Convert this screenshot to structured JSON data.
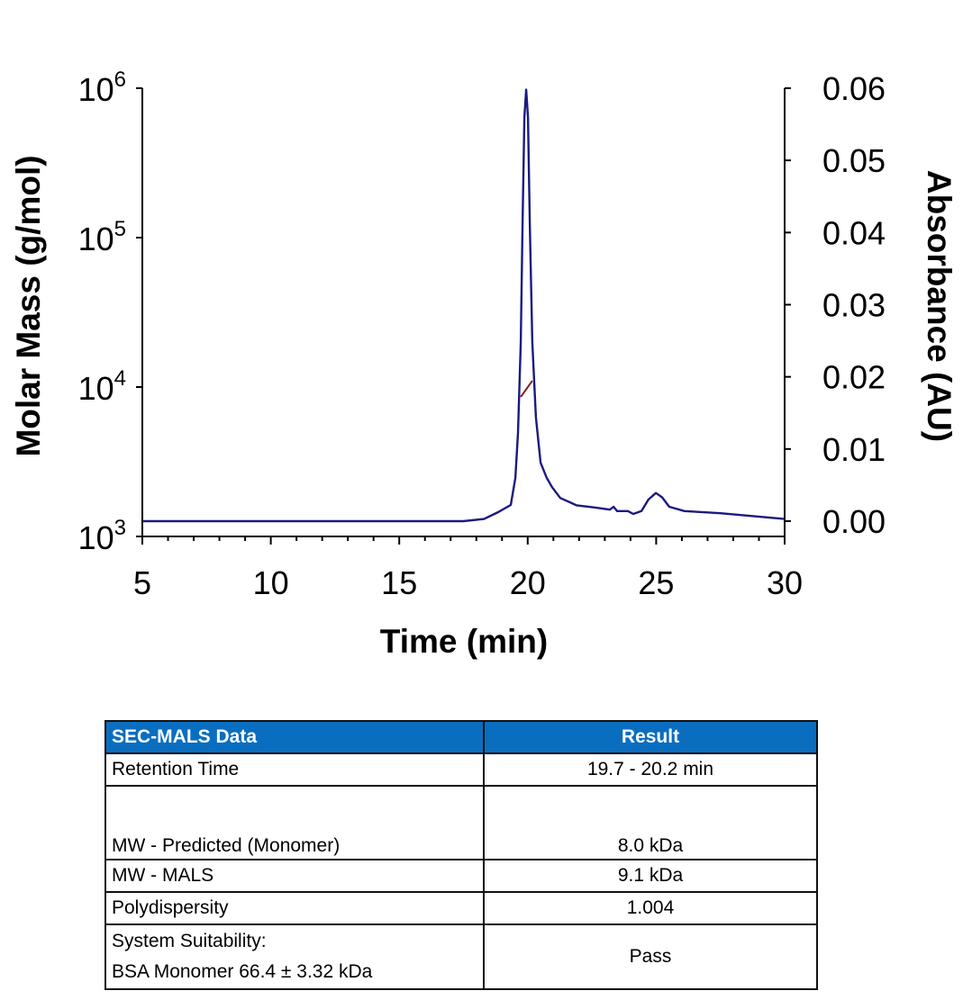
{
  "chart_data": {
    "type": "line",
    "xlabel": "Time (min)",
    "ylabel_left": "Molar Mass (g/mol)",
    "ylabel_right": "Absorbance (AU)",
    "xlim": [
      5,
      30
    ],
    "xticks": [
      5,
      10,
      15,
      20,
      25,
      30
    ],
    "ylim_left": [
      1000,
      1000000
    ],
    "yscale_left": "log",
    "yticks_left": [
      {
        "base": "10",
        "exp": "3"
      },
      {
        "base": "10",
        "exp": "4"
      },
      {
        "base": "10",
        "exp": "5"
      },
      {
        "base": "10",
        "exp": "6"
      }
    ],
    "ylim_right": [
      0,
      0.06
    ],
    "yticks_right": [
      "0.00",
      "0.01",
      "0.02",
      "0.03",
      "0.04",
      "0.05",
      "0.06"
    ],
    "grid": false,
    "series": [
      {
        "axis": "right",
        "color": "#1a1a80",
        "x": [
          5,
          17.5,
          18.3,
          18.85,
          19.34,
          19.52,
          19.62,
          19.73,
          19.8,
          19.87,
          19.94,
          20.01,
          20.08,
          20.18,
          20.32,
          20.5,
          20.74,
          20.95,
          21.27,
          21.9,
          22.6,
          23.2,
          23.34,
          23.48,
          23.9,
          24.11,
          24.43,
          24.7,
          24.99,
          25.23,
          25.51,
          26.1,
          27.5,
          30
        ],
        "y": [
          0.0,
          0.0,
          0.0003,
          0.00125,
          0.00225,
          0.006,
          0.0122,
          0.0248,
          0.0414,
          0.056,
          0.0598,
          0.056,
          0.0414,
          0.0248,
          0.0144,
          0.0081,
          0.006,
          0.0047,
          0.0032,
          0.0022,
          0.0019,
          0.0016,
          0.002,
          0.0014,
          0.0014,
          0.001,
          0.0014,
          0.003,
          0.0039,
          0.0033,
          0.002,
          0.0014,
          0.0011,
          0.0003
        ]
      },
      {
        "axis": "left",
        "color": "#8b1a1a",
        "x": [
          19.73,
          20.18
        ],
        "y": [
          8600,
          11000
        ]
      }
    ]
  },
  "table": {
    "headers": [
      "SEC-MALS Data",
      "Result"
    ],
    "header_color": "#0a6ec0",
    "rows": [
      {
        "label": "Retention Time",
        "value": "19.7 - 20.2 min"
      },
      {
        "label": "MW - Predicted (Monomer)",
        "value": "8.0 kDa"
      },
      {
        "label": "MW - MALS",
        "value": "9.1 kDa"
      },
      {
        "label": "Polydispersity",
        "value": "1.004"
      },
      {
        "label": "System Suitability:",
        "label2": "BSA Monomer 66.4 ± 3.32 kDa",
        "value": "Pass"
      }
    ]
  }
}
